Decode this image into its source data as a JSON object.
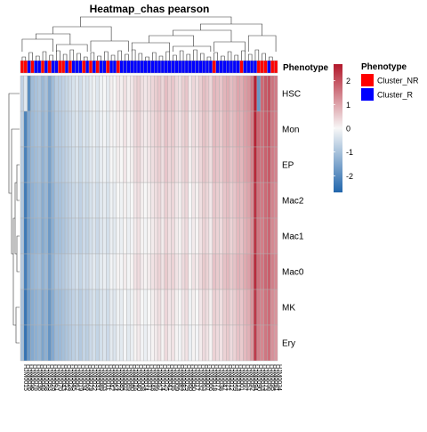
{
  "chart_data": {
    "type": "heatmap",
    "title": "Heatmap_chas pearson",
    "rows": [
      "HSC",
      "Mon",
      "EP",
      "Mac2",
      "Mac1",
      "Mac0",
      "MK",
      "Ery"
    ],
    "columns": [
      "HJM0015",
      "HJM0026",
      "HJM0096",
      "HJM0076",
      "HJM0036",
      "HJM0046",
      "HJM0058",
      "HJM0093",
      "HJM0026",
      "HJM0061",
      "HJM0070",
      "HJM0043",
      "HJM0052",
      "HJM0028",
      "HJM0045",
      "HJM0067",
      "HJM0019",
      "HJM0034",
      "HJM0068",
      "HJM0079",
      "HJM0022",
      "HJM0031",
      "HJM0089",
      "HJM0003",
      "HJM0011",
      "HJM0042",
      "HJM0064",
      "HJM0024",
      "HJM0085",
      "HJM0002",
      "HJM0069",
      "HJM0080",
      "HJM0016",
      "HJM0040",
      "HJM0008",
      "HJM0014",
      "HJM0037",
      "HJM0048",
      "HJM0099",
      "HJM0057",
      "HJM0074",
      "HJM0025",
      "HJM0041",
      "HJM0035",
      "HJM0009",
      "HJM0082",
      "HJM0083",
      "HJM0029",
      "HJM0060",
      "HJM0050",
      "HJM0017",
      "HJM0032",
      "HJM0063",
      "HJM0007",
      "HJM0066",
      "HJM0018",
      "HJM0077",
      "HJM0038",
      "HJM0047",
      "HJM0021",
      "HJM0012",
      "HJM0059",
      "HJM0013",
      "HJM0001",
      "HJM0097",
      "HJM0051",
      "HJM0092",
      "HJM0094",
      "HJM0090",
      "HJM0033",
      "HJM0073",
      "HJM0056",
      "HJM0095",
      "HJM0091",
      "HJM0034"
    ],
    "phenotype": [
      "Cluster_NR",
      "Cluster_NR",
      "Cluster_R",
      "Cluster_NR",
      "Cluster_R",
      "Cluster_R",
      "Cluster_NR",
      "Cluster_R",
      "Cluster_NR",
      "Cluster_R",
      "Cluster_R",
      "Cluster_NR",
      "Cluster_NR",
      "Cluster_R",
      "Cluster_NR",
      "Cluster_R",
      "Cluster_R",
      "Cluster_R",
      "Cluster_NR",
      "Cluster_R",
      "Cluster_NR",
      "Cluster_R",
      "Cluster_NR",
      "Cluster_R",
      "Cluster_R",
      "Cluster_NR",
      "Cluster_R",
      "Cluster_R",
      "Cluster_NR",
      "Cluster_R",
      "Cluster_R",
      "Cluster_R",
      "Cluster_R",
      "Cluster_R",
      "Cluster_R",
      "Cluster_R",
      "Cluster_R",
      "Cluster_R",
      "Cluster_R",
      "Cluster_R",
      "Cluster_R",
      "Cluster_R",
      "Cluster_R",
      "Cluster_R",
      "Cluster_R",
      "Cluster_R",
      "Cluster_R",
      "Cluster_R",
      "Cluster_R",
      "Cluster_R",
      "Cluster_R",
      "Cluster_R",
      "Cluster_R",
      "Cluster_R",
      "Cluster_R",
      "Cluster_R",
      "Cluster_NR",
      "Cluster_R",
      "Cluster_R",
      "Cluster_R",
      "Cluster_R",
      "Cluster_R",
      "Cluster_R",
      "Cluster_R",
      "Cluster_NR",
      "Cluster_R",
      "Cluster_R",
      "Cluster_R",
      "Cluster_R",
      "Cluster_NR",
      "Cluster_NR",
      "Cluster_NR",
      "Cluster_R",
      "Cluster_NR",
      "Cluster_NR"
    ],
    "column_means": [
      -0.9,
      -2.3,
      -1.6,
      -1.3,
      -1.2,
      -1.1,
      -1.4,
      -1.2,
      -1.7,
      -1.3,
      -1.0,
      -1.0,
      -0.9,
      -0.8,
      -0.7,
      -0.6,
      -0.5,
      -0.7,
      -0.5,
      -0.6,
      -0.4,
      -0.3,
      -0.5,
      -0.3,
      -0.2,
      -0.4,
      -0.1,
      -0.2,
      0.0,
      -0.1,
      0.1,
      -0.1,
      0.0,
      0.2,
      0.3,
      0.1,
      0.0,
      0.1,
      0.2,
      0.3,
      0.4,
      0.2,
      0.5,
      0.3,
      0.4,
      0.2,
      0.1,
      0.3,
      0.4,
      0.0,
      0.2,
      0.1,
      0.3,
      0.5,
      0.4,
      0.2,
      0.6,
      0.5,
      0.4,
      0.6,
      0.7,
      0.5,
      0.6,
      0.8,
      0.7,
      0.9,
      1.0,
      1.3,
      2.4,
      1.6,
      1.5,
      1.7,
      1.8,
      1.4,
      1.3
    ],
    "row_offsets": [
      0.2,
      0.15,
      0.1,
      0.0,
      -0.05,
      0.05,
      -0.1,
      -0.15
    ],
    "overrides": [
      {
        "row": "HSC",
        "col": 68,
        "value": 2.6
      },
      {
        "row": "HSC",
        "col": 69,
        "value": -1.8
      },
      {
        "row": "HSC",
        "col": 1,
        "value": -0.3
      },
      {
        "row": "HSC",
        "col": 2,
        "value": -2.0
      },
      {
        "row": "EP",
        "col": 68,
        "value": 2.5
      }
    ],
    "color_scale": {
      "min": -2.7,
      "max": 2.7,
      "ticks": [
        2,
        1,
        0,
        -1,
        -2
      ],
      "colors": [
        "#2166ac",
        "#f7f7f7",
        "#b2182b"
      ]
    },
    "annotation_label": "Phenotype",
    "legend": {
      "title": "Phenotype",
      "items": [
        {
          "label": "Cluster_NR",
          "color": "#ff0000"
        },
        {
          "label": "Cluster_R",
          "color": "#0000ff"
        }
      ]
    }
  }
}
